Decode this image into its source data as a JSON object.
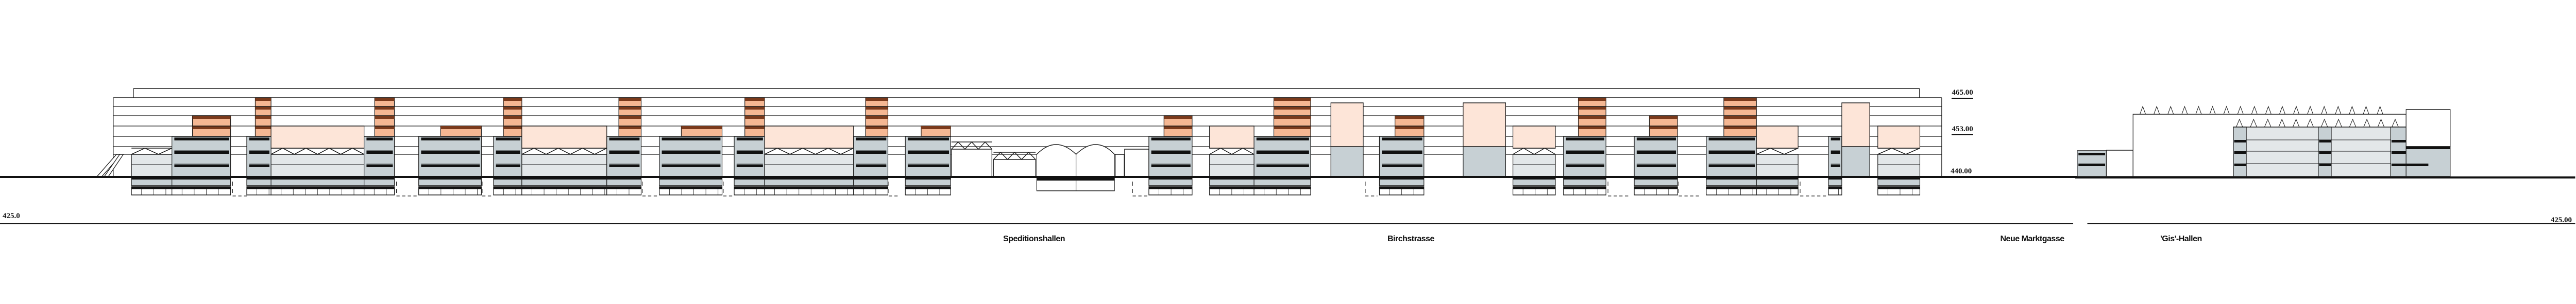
{
  "drawing": {
    "datum_left": "425.0",
    "datum_right": "425.00",
    "levels": [
      {
        "label": "465.00",
        "underlined": true
      },
      {
        "label": "453.00",
        "underlined": true
      },
      {
        "label": "440.00",
        "underlined": false
      }
    ],
    "place_labels": [
      {
        "label": "Speditionshallen"
      },
      {
        "label": "Birchstrasse"
      },
      {
        "label": "Neue Marktgasse"
      },
      {
        "label": "'Gis'-Hallen"
      }
    ]
  },
  "colors": {
    "line": "#1a1a1a",
    "slab": "#111111",
    "gray": "#c7d0d4",
    "light_gray": "#e3e7e9",
    "orange": "#f5b793",
    "dark_orange": "#7a3a1c",
    "pale_orange": "#fde5d8"
  }
}
